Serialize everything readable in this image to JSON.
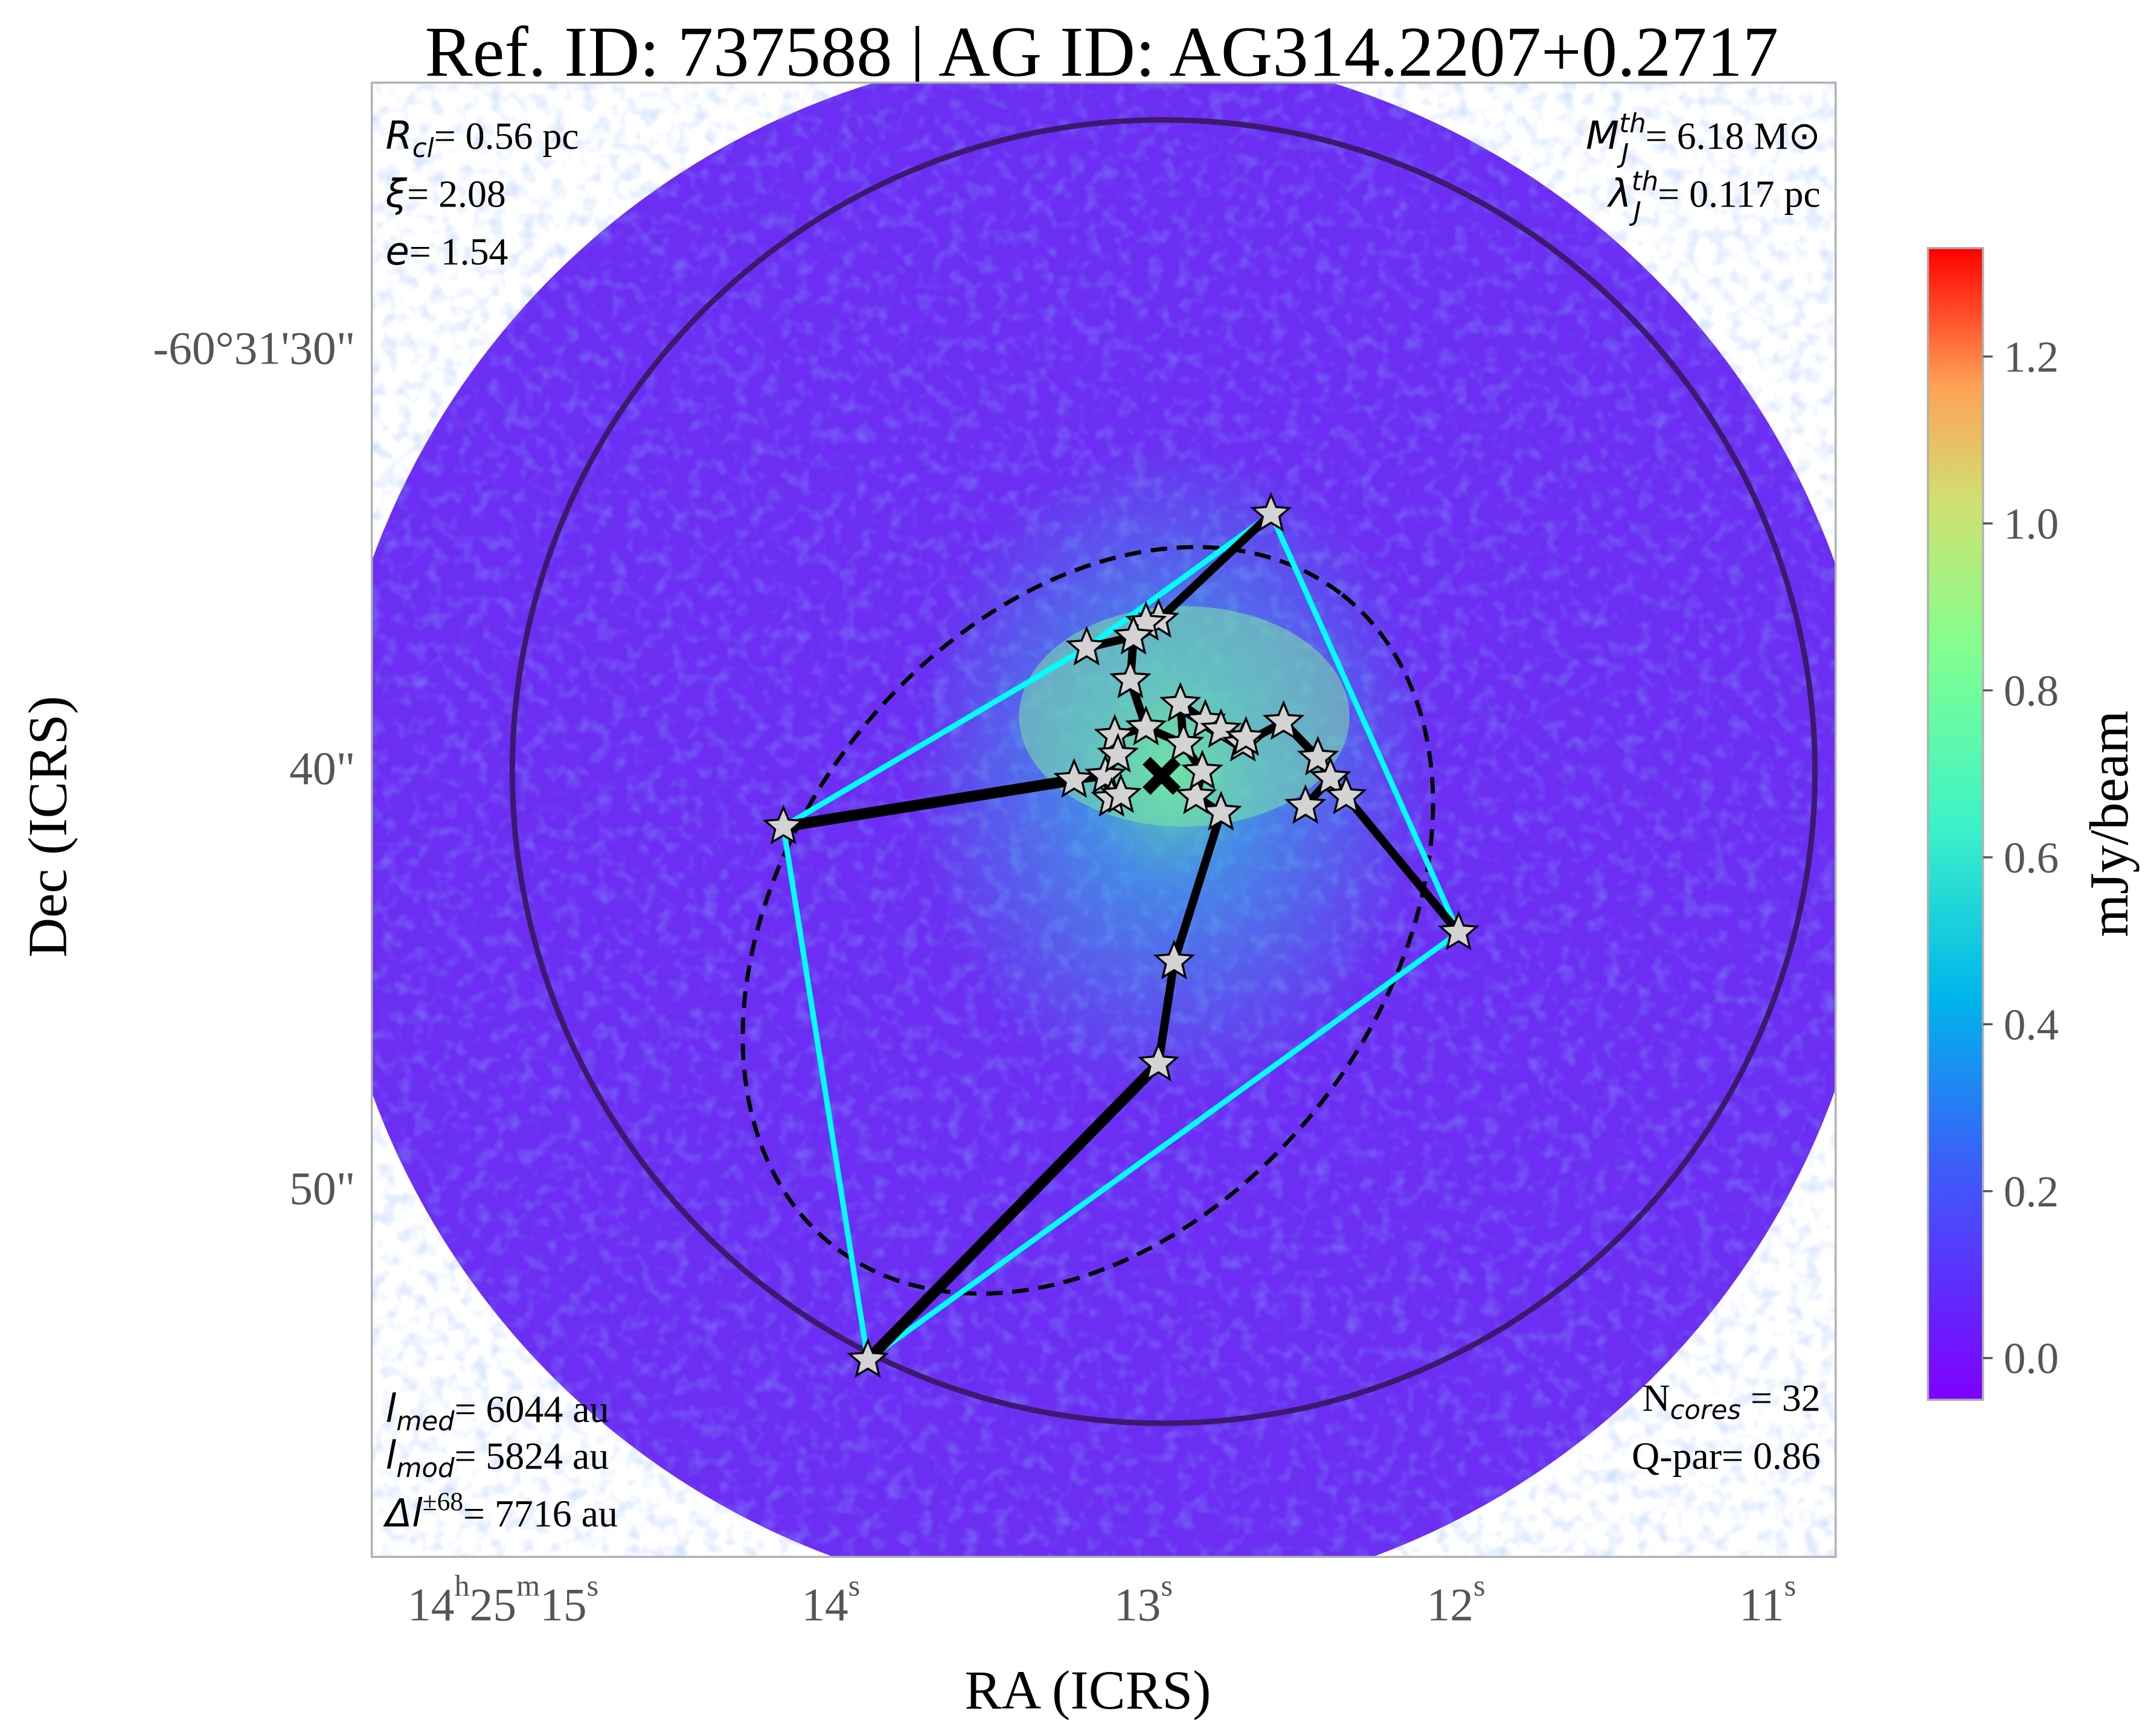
{
  "chart_data": {
    "type": "heatmap",
    "title": "Ref. ID: 737588 | AG ID: AG314.2207+0.2717",
    "xlabel": "RA (ICRS)",
    "ylabel": "Dec (ICRS)",
    "x_ticks": [
      {
        "value": 15,
        "h": "14",
        "m": "25",
        "s": "15"
      },
      {
        "value": 14,
        "s": "14"
      },
      {
        "value": 13,
        "s": "13"
      },
      {
        "value": 12,
        "s": "12"
      },
      {
        "value": 11,
        "s": "11"
      }
    ],
    "y_ticks": [
      {
        "value": 30,
        "label": "-60°31'30\""
      },
      {
        "value": 40,
        "label": "40\""
      },
      {
        "value": 50,
        "label": "50\""
      }
    ],
    "colorbar": {
      "label": "mJy/beam",
      "range": [
        -0.05,
        1.33
      ],
      "ticks": [
        "0.0",
        "0.2",
        "0.4",
        "0.6",
        "0.8",
        "1.0",
        "1.2"
      ],
      "colormap": "rainbow"
    },
    "annotations": {
      "top_left": [
        {
          "sym": "R",
          "sub": "cl",
          "text": "= 0.56 pc"
        },
        {
          "sym": "ξ",
          "sub": "",
          "text": "= 2.08"
        },
        {
          "sym": "e",
          "sub": "",
          "text": "= 1.54"
        }
      ],
      "top_right": [
        {
          "sym": "M",
          "sup": "th",
          "sub": "J",
          "text": "= 6.18 M⊙"
        },
        {
          "sym": "λ",
          "sup": "th",
          "sub": "J",
          "text": "= 0.117 pc"
        }
      ],
      "bottom_left": [
        {
          "sym": "l",
          "sub": "med",
          "text": "= 6044 au"
        },
        {
          "sym": "l",
          "sub": "mod",
          "text": "= 5824 au"
        },
        {
          "sym": "Δl",
          "sup": "±68",
          "text": "= 7716 au"
        }
      ],
      "bottom_right": [
        {
          "pre": "N",
          "sub": "cores",
          "text": " = 32"
        },
        {
          "pre": "Q-par= 0.86"
        }
      ]
    },
    "units": {
      "ra": "seconds of 14h25m",
      "dec": "arcsec of -60°31'"
    },
    "cores": [
      [
        12.63,
        33.97
      ],
      [
        14.19,
        41.41
      ],
      [
        13.92,
        54.1
      ],
      [
        12.03,
        43.93
      ],
      [
        12.94,
        44.62
      ],
      [
        12.99,
        47.05
      ],
      [
        12.79,
        41.08
      ],
      [
        12.99,
        36.49
      ],
      [
        13.03,
        36.56
      ],
      [
        13.22,
        37.15
      ],
      [
        13.07,
        36.89
      ],
      [
        13.08,
        37.93
      ],
      [
        12.92,
        38.49
      ],
      [
        12.84,
        38.89
      ],
      [
        12.79,
        39.11
      ],
      [
        12.72,
        39.44
      ],
      [
        12.59,
        38.92
      ],
      [
        12.48,
        39.77
      ],
      [
        12.44,
        40.26
      ],
      [
        12.39,
        40.69
      ],
      [
        12.52,
        40.92
      ],
      [
        13.13,
        39.25
      ],
      [
        13.03,
        39.05
      ],
      [
        13.26,
        40.3
      ],
      [
        13.16,
        40.2
      ],
      [
        13.14,
        40.75
      ],
      [
        13.11,
        40.66
      ],
      [
        12.87,
        40.69
      ],
      [
        12.85,
        40.1
      ],
      [
        13.12,
        39.7
      ],
      [
        12.91,
        39.44
      ],
      [
        12.71,
        39.3
      ]
    ],
    "mst_edges": [
      [
        1,
        23
      ],
      [
        2,
        5
      ],
      [
        5,
        4
      ],
      [
        4,
        6
      ],
      [
        0,
        7
      ],
      [
        7,
        8
      ],
      [
        8,
        10
      ],
      [
        10,
        9
      ],
      [
        10,
        11
      ],
      [
        11,
        22
      ],
      [
        22,
        21
      ],
      [
        21,
        29
      ],
      [
        29,
        24
      ],
      [
        24,
        23
      ],
      [
        24,
        25
      ],
      [
        25,
        26
      ],
      [
        22,
        30
      ],
      [
        30,
        12
      ],
      [
        12,
        13
      ],
      [
        13,
        14
      ],
      [
        14,
        15
      ],
      [
        15,
        16
      ],
      [
        16,
        17
      ],
      [
        17,
        18
      ],
      [
        18,
        19
      ],
      [
        19,
        3
      ],
      [
        18,
        20
      ],
      [
        30,
        28
      ],
      [
        28,
        27
      ],
      [
        27,
        6
      ],
      [
        14,
        31
      ]
    ],
    "hull": [
      0,
      3,
      2,
      1,
      9
    ],
    "center": [
      12.98,
      40.2
    ],
    "colors": {
      "mst": "#000000",
      "hull": "#00ffff",
      "circle": "#3b1a6e",
      "star_fill": "#d3d3d3",
      "frame": "#b0b0b0"
    }
  }
}
